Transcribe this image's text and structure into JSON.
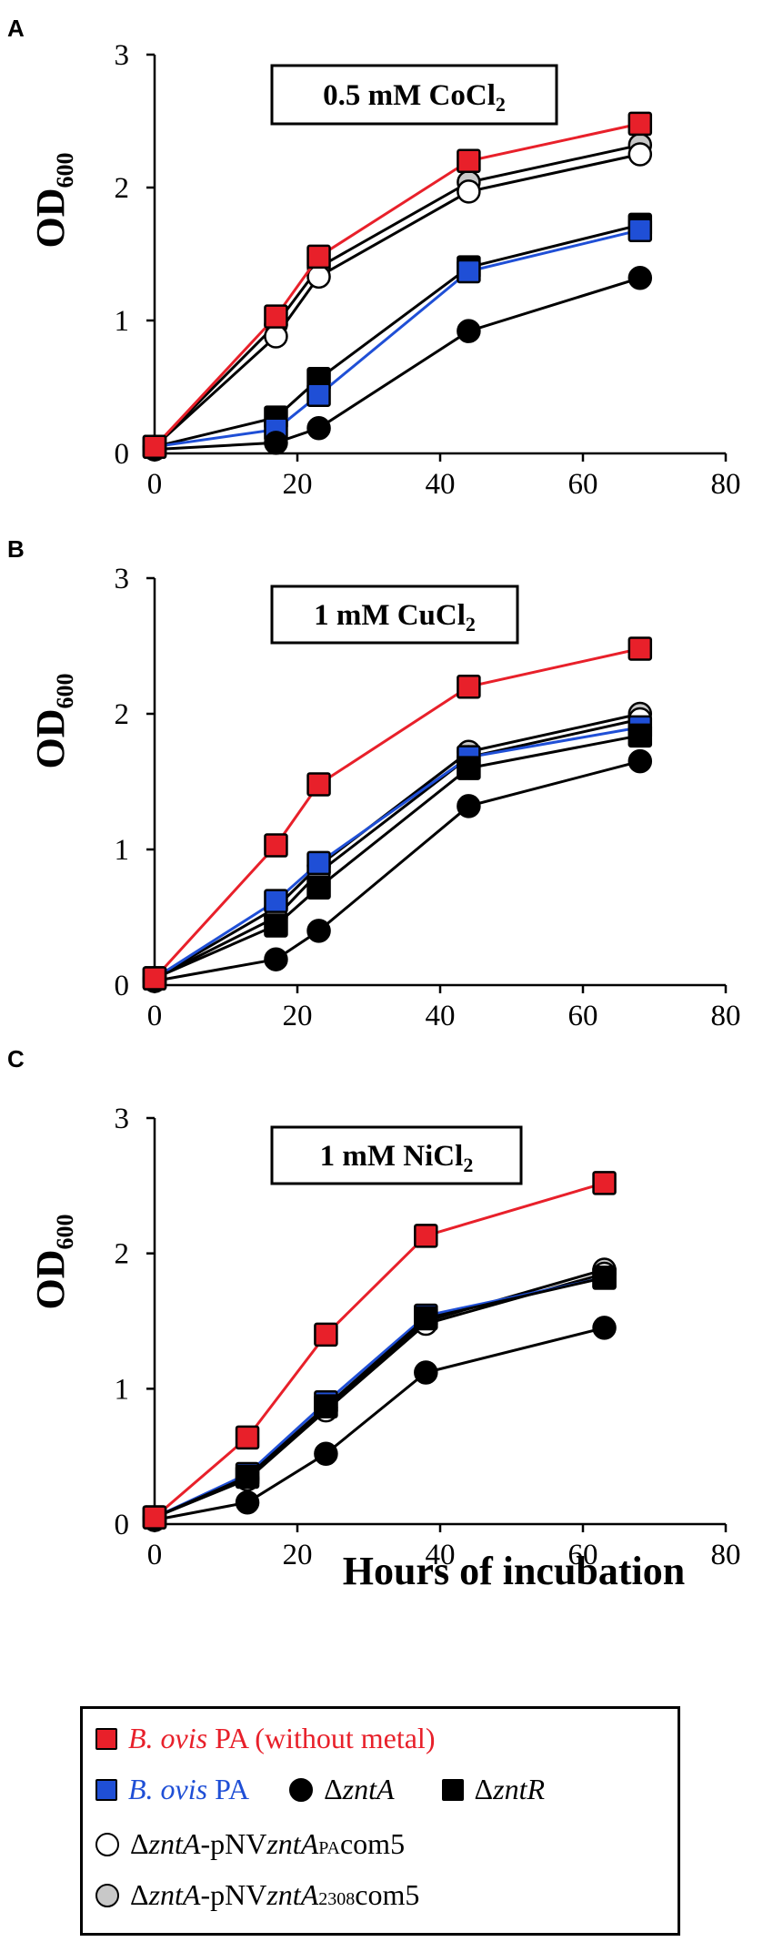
{
  "chart_data": [
    {
      "type": "line",
      "panel": "A",
      "title": "0.5 mM CoCl",
      "title_sub": "2",
      "ylabel": "OD",
      "ylabel_sub": "600",
      "xlabel": "",
      "xlim": [
        0,
        80
      ],
      "ylim": [
        0,
        3
      ],
      "xticks": [
        "0",
        "20",
        "40",
        "60",
        "80"
      ],
      "yticks": [
        "0",
        "1",
        "2",
        "3"
      ],
      "series": [
        {
          "key": "complement_2308",
          "name": "ΔzntA-pNVzntA2308com5",
          "x": [
            0,
            17,
            23,
            44,
            68
          ],
          "y": [
            0.05,
            0.97,
            1.4,
            2.04,
            2.32
          ]
        },
        {
          "key": "complement_pa",
          "name": "ΔzntA-pNVzntAPAcom5",
          "x": [
            0,
            17,
            23,
            44,
            68
          ],
          "y": [
            0.05,
            0.88,
            1.33,
            1.97,
            2.25
          ]
        },
        {
          "key": "zntr",
          "name": "ΔzntR",
          "x": [
            0,
            17,
            23,
            44,
            68
          ],
          "y": [
            0.05,
            0.27,
            0.56,
            1.4,
            1.72
          ]
        },
        {
          "key": "pa",
          "name": "B. ovis PA",
          "x": [
            0,
            17,
            23,
            44,
            68
          ],
          "y": [
            0.05,
            0.18,
            0.44,
            1.37,
            1.68
          ]
        },
        {
          "key": "znta",
          "name": "ΔzntA",
          "x": [
            0,
            17,
            23,
            44,
            68
          ],
          "y": [
            0.03,
            0.08,
            0.19,
            0.92,
            1.32
          ]
        },
        {
          "key": "pa_no_metal",
          "name": "B. ovis PA (without metal)",
          "x": [
            0,
            17,
            23,
            44,
            68
          ],
          "y": [
            0.05,
            1.03,
            1.48,
            2.2,
            2.48
          ]
        }
      ]
    },
    {
      "type": "line",
      "panel": "B",
      "title": "1 mM CuCl",
      "title_sub": "2",
      "ylabel": "OD",
      "ylabel_sub": "600",
      "xlabel": "",
      "xlim": [
        0,
        80
      ],
      "ylim": [
        0,
        3
      ],
      "xticks": [
        "0",
        "20",
        "40",
        "60",
        "80"
      ],
      "yticks": [
        "0",
        "1",
        "2",
        "3"
      ],
      "series": [
        {
          "key": "complement_2308",
          "name": "ΔzntA-pNVzntA2308com5",
          "x": [
            0,
            17,
            23,
            44,
            68
          ],
          "y": [
            0.05,
            0.57,
            0.88,
            1.72,
            2.0
          ]
        },
        {
          "key": "complement_pa",
          "name": "ΔzntA-pNVzntAPAcom5",
          "x": [
            0,
            17,
            23,
            44,
            68
          ],
          "y": [
            0.05,
            0.5,
            0.83,
            1.68,
            1.96
          ]
        },
        {
          "key": "pa",
          "name": "B. ovis PA",
          "x": [
            0,
            17,
            23,
            44,
            68
          ],
          "y": [
            0.05,
            0.62,
            0.9,
            1.68,
            1.9
          ]
        },
        {
          "key": "zntr",
          "name": "ΔzntR",
          "x": [
            0,
            17,
            23,
            44,
            68
          ],
          "y": [
            0.05,
            0.44,
            0.72,
            1.6,
            1.84
          ]
        },
        {
          "key": "znta",
          "name": "ΔzntA",
          "x": [
            0,
            17,
            23,
            44,
            68
          ],
          "y": [
            0.03,
            0.19,
            0.4,
            1.32,
            1.65
          ]
        },
        {
          "key": "pa_no_metal",
          "name": "B. ovis PA (without metal)",
          "x": [
            0,
            17,
            23,
            44,
            68
          ],
          "y": [
            0.05,
            1.03,
            1.48,
            2.2,
            2.48
          ]
        }
      ]
    },
    {
      "type": "line",
      "panel": "C",
      "title": "1 mM NiCl",
      "title_sub": "2",
      "ylabel": "OD",
      "ylabel_sub": "600",
      "xlabel": "Hours of incubation",
      "xlim": [
        0,
        80
      ],
      "ylim": [
        0,
        3
      ],
      "xticks": [
        "0",
        "20",
        "40",
        "60",
        "80"
      ],
      "yticks": [
        "0",
        "1",
        "2",
        "3"
      ],
      "series": [
        {
          "key": "complement_2308",
          "name": "ΔzntA-pNVzntA2308com5",
          "x": [
            0,
            13,
            24,
            38,
            63
          ],
          "y": [
            0.05,
            0.34,
            0.86,
            1.5,
            1.88
          ]
        },
        {
          "key": "complement_pa",
          "name": "ΔzntA-pNVzntAPAcom5",
          "x": [
            0,
            13,
            24,
            38,
            63
          ],
          "y": [
            0.05,
            0.33,
            0.84,
            1.48,
            1.85
          ]
        },
        {
          "key": "pa",
          "name": "B. ovis PA",
          "x": [
            0,
            13,
            24,
            38,
            63
          ],
          "y": [
            0.05,
            0.37,
            0.9,
            1.54,
            1.82
          ]
        },
        {
          "key": "zntr",
          "name": "ΔzntR",
          "x": [
            0,
            13,
            24,
            38,
            63
          ],
          "y": [
            0.05,
            0.35,
            0.87,
            1.52,
            1.82
          ]
        },
        {
          "key": "znta",
          "name": "ΔzntA",
          "x": [
            0,
            13,
            24,
            38,
            63
          ],
          "y": [
            0.03,
            0.16,
            0.52,
            1.12,
            1.45
          ]
        },
        {
          "key": "pa_no_metal",
          "name": "B. ovis PA (without metal)",
          "x": [
            0,
            13,
            24,
            38,
            63
          ],
          "y": [
            0.05,
            0.64,
            1.4,
            2.13,
            2.52
          ]
        }
      ]
    }
  ],
  "styles": {
    "pa_no_metal": {
      "marker": "square",
      "fill": "#e8202a",
      "line": "#e8202a"
    },
    "pa": {
      "marker": "square",
      "fill": "#1f4fd6",
      "line": "#1f4fd6"
    },
    "znta": {
      "marker": "circle",
      "fill": "#000000",
      "line": "#000000"
    },
    "zntr": {
      "marker": "square",
      "fill": "#000000",
      "line": "#000000"
    },
    "complement_pa": {
      "marker": "circle",
      "fill": "#ffffff",
      "line": "#000000"
    },
    "complement_2308": {
      "marker": "circle",
      "fill": "#c8c8c8",
      "line": "#000000"
    }
  },
  "legend": {
    "row1": {
      "italic": "B. ovis",
      "text": " PA (without metal)",
      "color": "#e8202a"
    },
    "row2a": {
      "italic": "B. ovis",
      "text": " PA",
      "color": "#1f4fd6"
    },
    "row2b": {
      "delta": "Δ",
      "italic": "zntA"
    },
    "row2c": {
      "delta": "Δ",
      "italic": "zntR"
    },
    "row3": {
      "delta": "Δ",
      "italic1": "zntA",
      "mid": "-pNV",
      "italic2": "zntA",
      "sub": "PA",
      "tail": "com5"
    },
    "row4": {
      "delta": "Δ",
      "italic1": "zntA",
      "mid": "-pNV",
      "italic2": "zntA",
      "sub": "2308",
      "tail": "com5"
    }
  }
}
